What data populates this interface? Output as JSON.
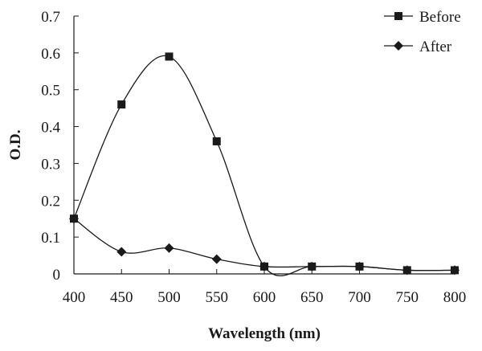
{
  "chart_data": {
    "type": "line",
    "xlabel": "Wavelength (nm)",
    "ylabel": "O.D.",
    "xlim": [
      400,
      800
    ],
    "ylim": [
      0,
      0.7
    ],
    "x_ticks": [
      400,
      450,
      500,
      550,
      600,
      650,
      700,
      750,
      800
    ],
    "y_ticks": [
      0,
      0.1,
      0.2,
      0.3,
      0.4,
      0.5,
      0.6,
      0.7
    ],
    "x_tick_labels": [
      "400",
      "450",
      "500",
      "550",
      "600",
      "650",
      "700",
      "750",
      "800"
    ],
    "y_tick_labels": [
      "0",
      "0.1",
      "0.2",
      "0.3",
      "0.4",
      "0.5",
      "0.6",
      "0.7"
    ],
    "grid": false,
    "legend_position": "top-right",
    "smooth": true,
    "series": [
      {
        "name": "Before",
        "marker": "square",
        "color": "#1a1a1a",
        "x": [
          400,
          450,
          500,
          550,
          600,
          650,
          700,
          750,
          800
        ],
        "y": [
          0.15,
          0.46,
          0.59,
          0.36,
          0.02,
          0.02,
          0.02,
          0.01,
          0.01
        ]
      },
      {
        "name": "After",
        "marker": "diamond",
        "color": "#1a1a1a",
        "x": [
          400,
          450,
          500,
          550,
          600,
          650,
          700,
          750,
          800
        ],
        "y": [
          0.15,
          0.06,
          0.07,
          0.04,
          0.02,
          0.02,
          0.02,
          0.01,
          0.01
        ]
      }
    ]
  }
}
